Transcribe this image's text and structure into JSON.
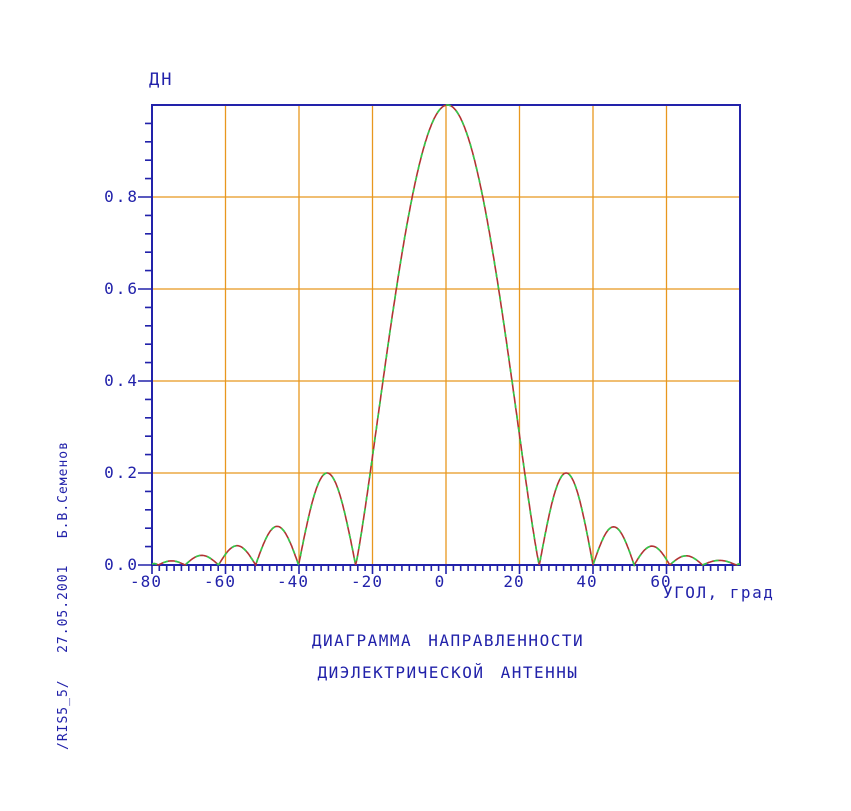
{
  "chart_data": {
    "type": "line",
    "title_lines": [
      "ДИАГРАММА НАПРАВЛЕННОСТИ",
      "ДИЭЛЕКТРИЧЕСКОЙ АНТЕННЫ"
    ],
    "y_axis_title": "ДН",
    "x_axis_label": "УГОЛ, град",
    "side_note": "/RIS5_5/   27.05.2001   Б.В.Семенов",
    "xlabel": "УГОЛ, град",
    "ylabel": "ДН",
    "xlim": [
      -80,
      80
    ],
    "ylim": [
      0,
      1.0
    ],
    "grid": "on",
    "x_major_ticks": [
      -80,
      -60,
      -40,
      -20,
      0,
      20,
      40,
      60
    ],
    "x_tick_labels": [
      "-80",
      "-60",
      "-40",
      "-20",
      "0",
      "20",
      "40",
      "60"
    ],
    "x_minor_step": 2,
    "y_major_ticks": [
      0,
      0.2,
      0.4,
      0.6,
      0.8
    ],
    "y_tick_labels": [
      "0.0",
      "0.2",
      "0.4",
      "0.6",
      "0.8"
    ],
    "y_minor_step": 0.04,
    "grid_x": [
      -60,
      -40,
      -20,
      0,
      20,
      40,
      60
    ],
    "grid_y": [
      0.2,
      0.4,
      0.6,
      0.8
    ],
    "series": [
      {
        "name": "radiation-pattern-solid",
        "style": "solid",
        "color": "#b23333"
      },
      {
        "name": "radiation-pattern-dashed-overlay",
        "style": "dashed",
        "color": "#2fcc4a"
      }
    ],
    "lobes_deg_null_to_null": [
      {
        "from": -80.5,
        "to": -78.3,
        "peak": 0.003
      },
      {
        "from": -78.3,
        "to": -71.0,
        "peak": 0.009
      },
      {
        "from": -71.0,
        "to": -61.9,
        "peak": 0.021
      },
      {
        "from": -61.9,
        "to": -51.8,
        "peak": 0.042
      },
      {
        "from": -51.8,
        "to": -40.1,
        "peak": 0.084
      },
      {
        "from": -40.1,
        "to": -24.6,
        "peak": 0.2
      },
      {
        "from": -24.6,
        "to": 25.4,
        "peak": 1.0,
        "exp": 1.15
      },
      {
        "from": 25.4,
        "to": 40.0,
        "peak": 0.2
      },
      {
        "from": 40.0,
        "to": 51.2,
        "peak": 0.083
      },
      {
        "from": 51.2,
        "to": 60.9,
        "peak": 0.041
      },
      {
        "from": 60.9,
        "to": 69.8,
        "peak": 0.02
      },
      {
        "from": 69.8,
        "to": 79.0,
        "peak": 0.01
      },
      {
        "from": 79.0,
        "to": 80.5,
        "peak": 0.002
      }
    ],
    "key_readings": {
      "main_lobe_peak": 1.0,
      "main_lobe_peak_angle_deg": 0.4,
      "first_sidelobe_level": 0.2,
      "first_sidelobe_angles_deg": [
        -32,
        31.5
      ]
    },
    "colors": {
      "axis_and_text": "#2222aa",
      "grid": "#e8971f",
      "curve_solid": "#b23333",
      "curve_dashed": "#2fcc4a",
      "background": "#ffffff"
    }
  }
}
